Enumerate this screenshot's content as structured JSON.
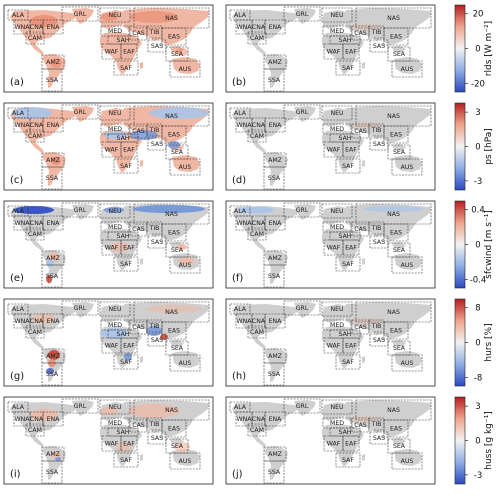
{
  "regions": [
    {
      "code": "ALA"
    },
    {
      "code": "GRL"
    },
    {
      "code": "NEU"
    },
    {
      "code": "NAS"
    },
    {
      "code": "WNA"
    },
    {
      "code": "CNA"
    },
    {
      "code": "ENA"
    },
    {
      "code": "CAM"
    },
    {
      "code": "MED"
    },
    {
      "code": "CAS"
    },
    {
      "code": "TIB"
    },
    {
      "code": "EAS"
    },
    {
      "code": "SAH"
    },
    {
      "code": "WAF"
    },
    {
      "code": "EAF"
    },
    {
      "code": "SAS"
    },
    {
      "code": "SEA"
    },
    {
      "code": "AMZ"
    },
    {
      "code": "SAF"
    },
    {
      "code": "SSA"
    },
    {
      "code": "AUS"
    }
  ],
  "rows": [
    {
      "variable_label": "rlds [W m⁻²]",
      "ticks": [
        "20",
        "0",
        "-20"
      ],
      "tick_values": [
        20,
        0,
        -20
      ],
      "range": [
        -25,
        25
      ],
      "panels": [
        {
          "letter": "(a)",
          "signal": "positive-wide"
        },
        {
          "letter": "(b)",
          "signal": "gray"
        }
      ]
    },
    {
      "variable_label": "ps [hPa]",
      "ticks": [
        "3",
        "0",
        "-3"
      ],
      "tick_values": [
        3,
        0,
        -3
      ],
      "range": [
        -3.8,
        3.8
      ],
      "panels": [
        {
          "letter": "(c)",
          "signal": "mixed-ps"
        },
        {
          "letter": "(d)",
          "signal": "gray"
        }
      ]
    },
    {
      "variable_label": "sfcwind [m s⁻¹]",
      "ticks": [
        "0.4",
        "0",
        "-0.4"
      ],
      "tick_values": [
        0.4,
        0,
        -0.4
      ],
      "range": [
        -0.5,
        0.5
      ],
      "panels": [
        {
          "letter": "(e)",
          "signal": "mixed-wind"
        },
        {
          "letter": "(f)",
          "signal": "gray-light-blue"
        }
      ]
    },
    {
      "variable_label": "hurs [%]",
      "ticks": [
        "8",
        "0",
        "-8"
      ],
      "tick_values": [
        8,
        0,
        -8
      ],
      "range": [
        -10,
        10
      ],
      "panels": [
        {
          "letter": "(g)",
          "signal": "mixed-hurs"
        },
        {
          "letter": "(h)",
          "signal": "gray"
        }
      ]
    },
    {
      "variable_label": "huss [g kg⁻¹]",
      "ticks": [
        "3",
        "0",
        "-3"
      ],
      "tick_values": [
        3,
        0,
        -3
      ],
      "range": [
        -3.8,
        3.8
      ],
      "panels": [
        {
          "letter": "(i)",
          "signal": "positive-light"
        },
        {
          "letter": "(j)",
          "signal": "gray"
        }
      ]
    }
  ],
  "colors": {
    "gray_land": "#cfcfcf",
    "light_red": "#f0b8a4",
    "mid_red": "#e8846a",
    "deep_red": "#c93a2a",
    "light_blue": "#a9c4ea",
    "mid_blue": "#6f93d8",
    "deep_blue": "#2b48c0"
  }
}
